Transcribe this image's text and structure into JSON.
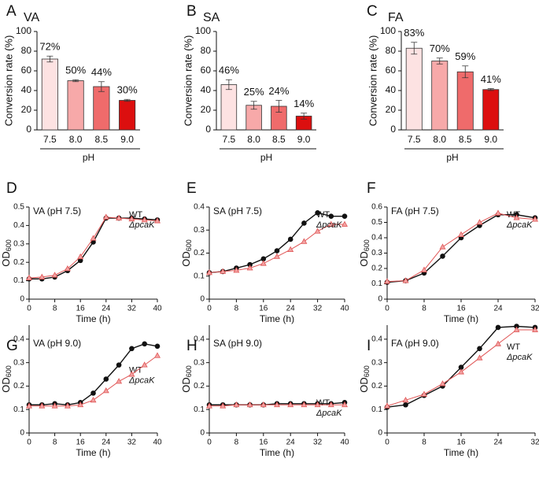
{
  "chart_data": [
    {
      "type": "bar",
      "panel": "A",
      "title": "VA",
      "categories": [
        "7.5",
        "8.0",
        "8.5",
        "9.0"
      ],
      "values": [
        72,
        50,
        44,
        30
      ],
      "value_labels": [
        "72%",
        "50%",
        "44%",
        "30%"
      ],
      "errors": [
        3,
        1,
        5,
        1
      ],
      "colors": [
        "#fde2e2",
        "#f7a9a9",
        "#ef6b6b",
        "#dc0f0f"
      ],
      "xlabel": "pH",
      "ylabel": "Conversion rate (%)",
      "ylim": [
        0,
        100
      ],
      "yticks": [
        0,
        20,
        40,
        60,
        80,
        100
      ]
    },
    {
      "type": "bar",
      "panel": "B",
      "title": "SA",
      "categories": [
        "7.5",
        "8.0",
        "8.5",
        "9.0"
      ],
      "values": [
        46,
        25,
        24,
        14
      ],
      "value_labels": [
        "46%",
        "25%",
        "24%",
        "14%"
      ],
      "errors": [
        5,
        4,
        6,
        3
      ],
      "colors": [
        "#fde2e2",
        "#f7a9a9",
        "#ef6b6b",
        "#dc0f0f"
      ],
      "xlabel": "pH",
      "ylabel": "Conversion rate (%)",
      "ylim": [
        0,
        100
      ],
      "yticks": [
        0,
        20,
        40,
        60,
        80,
        100
      ]
    },
    {
      "type": "bar",
      "panel": "C",
      "title": "FA",
      "categories": [
        "7.5",
        "8.0",
        "8.5",
        "9.0"
      ],
      "values": [
        83,
        70,
        59,
        41
      ],
      "value_labels": [
        "83%",
        "70%",
        "59%",
        "41%"
      ],
      "errors": [
        6,
        3,
        6,
        1
      ],
      "colors": [
        "#fde2e2",
        "#f7a9a9",
        "#ef6b6b",
        "#dc0f0f"
      ],
      "xlabel": "pH",
      "ylabel": "Conversion rate (%)",
      "ylim": [
        0,
        100
      ],
      "yticks": [
        0,
        20,
        40,
        60,
        80,
        100
      ]
    },
    {
      "type": "line",
      "panel": "D",
      "title": "VA (pH 7.5)",
      "x": [
        0,
        4,
        8,
        12,
        16,
        20,
        24,
        28,
        32,
        36,
        40
      ],
      "series": [
        {
          "name": "WT",
          "color": "#111111",
          "values": [
            0.11,
            0.11,
            0.12,
            0.155,
            0.21,
            0.31,
            0.44,
            0.44,
            0.44,
            0.435,
            0.43
          ]
        },
        {
          "name": "ΔpcaK",
          "color": "#e05555",
          "values": [
            0.115,
            0.12,
            0.13,
            0.165,
            0.23,
            0.33,
            0.445,
            0.44,
            0.435,
            0.43,
            0.425
          ]
        }
      ],
      "legend": "upper right",
      "xlabel": "Time (h)",
      "ylabel": "OD",
      "ylabel_subscript": "600",
      "xlim": [
        0,
        40
      ],
      "xticks": [
        0,
        8,
        16,
        24,
        32,
        40
      ],
      "ylim": [
        0,
        0.5
      ],
      "yticks": [
        0,
        0.1,
        0.2,
        0.3,
        0.4,
        0.5
      ]
    },
    {
      "type": "line",
      "panel": "E",
      "title": "SA (pH 7.5)",
      "x": [
        0,
        4,
        8,
        12,
        16,
        20,
        24,
        28,
        32,
        36,
        40
      ],
      "series": [
        {
          "name": "WT",
          "color": "#111111",
          "values": [
            0.115,
            0.12,
            0.135,
            0.15,
            0.175,
            0.21,
            0.26,
            0.33,
            0.375,
            0.36,
            0.36
          ]
        },
        {
          "name": "ΔpcaK",
          "color": "#e05555",
          "values": [
            0.115,
            0.12,
            0.125,
            0.135,
            0.155,
            0.185,
            0.215,
            0.25,
            0.295,
            0.325,
            0.325
          ]
        }
      ],
      "legend": "upper right",
      "xlabel": "Time (h)",
      "ylabel": "OD",
      "ylabel_subscript": "600",
      "xlim": [
        0,
        40
      ],
      "xticks": [
        0,
        8,
        16,
        24,
        32,
        40
      ],
      "ylim": [
        0,
        0.4
      ],
      "yticks": [
        0,
        0.1,
        0.2,
        0.3,
        0.4
      ]
    },
    {
      "type": "line",
      "panel": "F",
      "title": "FA (pH 7.5)",
      "x": [
        0,
        4,
        8,
        12,
        16,
        20,
        24,
        28,
        32
      ],
      "series": [
        {
          "name": "WT",
          "color": "#111111",
          "values": [
            0.11,
            0.12,
            0.17,
            0.28,
            0.4,
            0.48,
            0.55,
            0.55,
            0.53
          ]
        },
        {
          "name": "ΔpcaK",
          "color": "#e05555",
          "values": [
            0.115,
            0.12,
            0.19,
            0.34,
            0.42,
            0.5,
            0.56,
            0.53,
            0.52
          ]
        }
      ],
      "legend": "upper right",
      "xlabel": "Time (h)",
      "ylabel": "OD",
      "ylabel_subscript": "600",
      "xlim": [
        0,
        32
      ],
      "xticks": [
        0,
        8,
        16,
        24,
        32
      ],
      "ylim": [
        0,
        0.6
      ],
      "yticks": [
        0,
        0.1,
        0.2,
        0.3,
        0.4,
        0.5,
        0.6
      ]
    },
    {
      "type": "line",
      "panel": "G",
      "title": "VA (pH 9.0)",
      "x": [
        0,
        4,
        8,
        12,
        16,
        20,
        24,
        28,
        32,
        36,
        40
      ],
      "series": [
        {
          "name": "WT",
          "color": "#111111",
          "values": [
            0.12,
            0.12,
            0.125,
            0.12,
            0.13,
            0.17,
            0.23,
            0.29,
            0.36,
            0.38,
            0.37
          ]
        },
        {
          "name": "ΔpcaK",
          "color": "#e05555",
          "values": [
            0.115,
            0.115,
            0.115,
            0.115,
            0.12,
            0.14,
            0.18,
            0.22,
            0.25,
            0.29,
            0.33
          ]
        }
      ],
      "legend": "center right",
      "xlabel": "Time (h)",
      "ylabel": "OD",
      "ylabel_subscript": "600",
      "xlim": [
        0,
        40
      ],
      "xticks": [
        0,
        8,
        16,
        24,
        32,
        40
      ],
      "ylim": [
        0,
        0.46
      ],
      "yticks": [
        0,
        0.1,
        0.2,
        0.3,
        0.4
      ]
    },
    {
      "type": "line",
      "panel": "H",
      "title": "SA (pH 9.0)",
      "x": [
        0,
        4,
        8,
        12,
        16,
        20,
        24,
        28,
        32,
        36,
        40
      ],
      "series": [
        {
          "name": "WT",
          "color": "#111111",
          "values": [
            0.12,
            0.12,
            0.12,
            0.12,
            0.12,
            0.125,
            0.125,
            0.125,
            0.125,
            0.125,
            0.13
          ]
        },
        {
          "name": "ΔpcaK",
          "color": "#e05555",
          "values": [
            0.115,
            0.115,
            0.12,
            0.12,
            0.12,
            0.12,
            0.12,
            0.12,
            0.12,
            0.12,
            0.12
          ]
        }
      ],
      "legend": "lower right",
      "xlabel": "Time (h)",
      "ylabel": "OD",
      "ylabel_subscript": "600",
      "xlim": [
        0,
        40
      ],
      "xticks": [
        0,
        8,
        16,
        24,
        32,
        40
      ],
      "ylim": [
        0,
        0.46
      ],
      "yticks": [
        0,
        0.1,
        0.2,
        0.3,
        0.4
      ]
    },
    {
      "type": "line",
      "panel": "I",
      "title": "FA (pH 9.0)",
      "x": [
        0,
        4,
        8,
        12,
        16,
        20,
        24,
        28,
        32
      ],
      "series": [
        {
          "name": "WT",
          "color": "#111111",
          "values": [
            0.11,
            0.12,
            0.16,
            0.2,
            0.28,
            0.36,
            0.45,
            0.455,
            0.45
          ]
        },
        {
          "name": "ΔpcaK",
          "color": "#e05555",
          "values": [
            0.115,
            0.14,
            0.165,
            0.21,
            0.26,
            0.32,
            0.38,
            0.44,
            0.44
          ]
        }
      ],
      "legend": "upper right",
      "xlabel": "Time (h)",
      "ylabel": "OD",
      "ylabel_subscript": "600",
      "xlim": [
        0,
        32
      ],
      "xticks": [
        0,
        8,
        16,
        24,
        32
      ],
      "ylim": [
        0,
        0.46
      ],
      "yticks": [
        0,
        0.1,
        0.2,
        0.3,
        0.4
      ]
    }
  ]
}
